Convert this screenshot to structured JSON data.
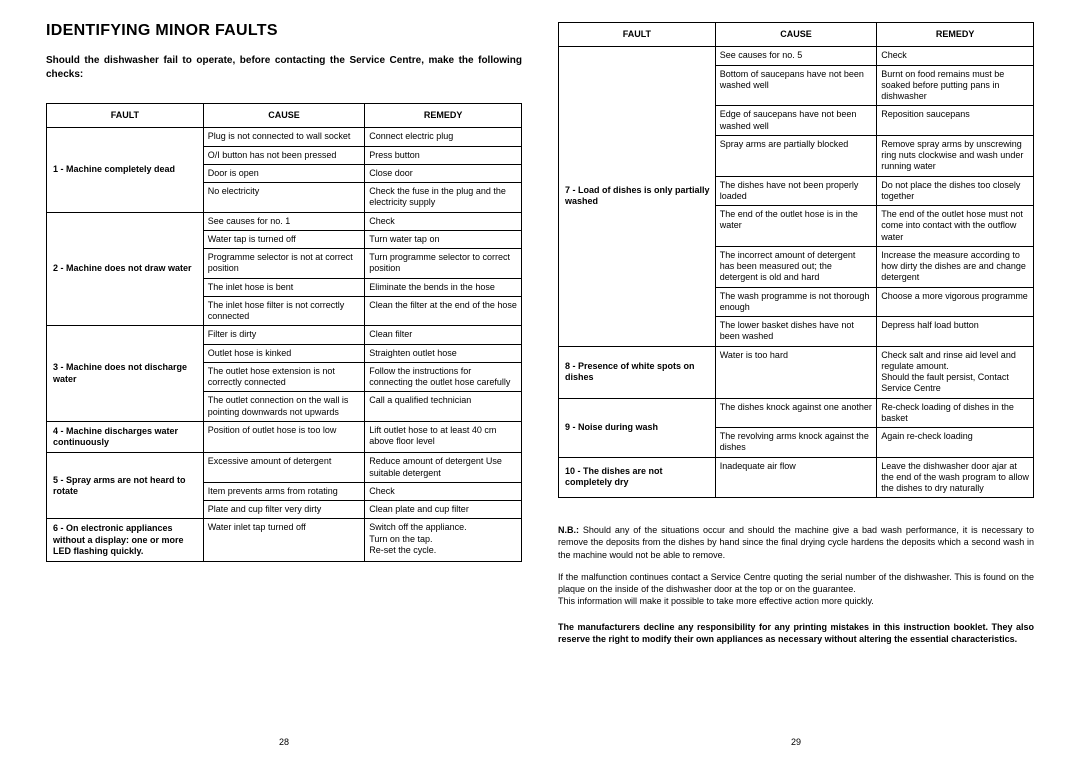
{
  "title": "IDENTIFYING MINOR FAULTS",
  "intro": "Should the dishwasher fail to operate, before contacting the Service Centre, make the following checks:",
  "headers": {
    "fault": "FAULT",
    "cause": "CAUSE",
    "remedy": "REMEDY"
  },
  "leftFaults": [
    {
      "label": "1 - Machine completely dead",
      "rows": [
        {
          "cause": "Plug is not connected to wall socket",
          "remedy": "Connect electric plug"
        },
        {
          "cause": "O/I button has not been pressed",
          "remedy": "Press button"
        },
        {
          "cause": "Door is open",
          "remedy": "Close door"
        },
        {
          "cause": "No electricity",
          "remedy": "Check the fuse in the plug and the electricity supply"
        }
      ]
    },
    {
      "label": "2 - Machine does not draw water",
      "rows": [
        {
          "cause": "See causes for no. 1",
          "remedy": "Check"
        },
        {
          "cause": "Water tap is turned off",
          "remedy": "Turn water tap on"
        },
        {
          "cause": "Programme selector is not at correct position",
          "remedy": "Turn programme selector to correct position"
        },
        {
          "cause": "The inlet hose is bent",
          "remedy": "Eliminate the bends in the hose"
        },
        {
          "cause": "The inlet hose filter is not correctly connected",
          "remedy": "Clean the filter at the end of the hose"
        }
      ]
    },
    {
      "label": "3 - Machine does not discharge water",
      "rows": [
        {
          "cause": "Filter is dirty",
          "remedy": "Clean filter"
        },
        {
          "cause": "Outlet hose is kinked",
          "remedy": "Straighten outlet hose"
        },
        {
          "cause": "The outlet hose extension is not correctly connected",
          "remedy": "Follow the instructions for connecting the outlet hose carefully"
        },
        {
          "cause": "The outlet connection on the wall is pointing downwards not upwards",
          "remedy": "Call a qualified technician"
        }
      ]
    },
    {
      "label": "4 - Machine discharges water continuously",
      "rows": [
        {
          "cause": "Position of outlet hose is too low",
          "remedy": "Lift outlet hose to at least 40 cm above floor level"
        }
      ]
    },
    {
      "label": "5 - Spray arms are not heard to rotate",
      "rows": [
        {
          "cause": "Excessive amount of detergent",
          "remedy": "Reduce amount of detergent Use suitable detergent"
        },
        {
          "cause": "Item prevents arms from rotating",
          "remedy": "Check"
        },
        {
          "cause": "Plate and cup filter very dirty",
          "remedy": "Clean plate and cup filter"
        }
      ]
    },
    {
      "label": "6 - On electronic appliances without a display: one or more LED flashing quickly.",
      "rows": [
        {
          "cause": "Water inlet tap turned off",
          "remedy": "Switch off the appliance.\nTurn on the tap.\nRe-set the cycle."
        }
      ]
    }
  ],
  "rightFaults": [
    {
      "label": "7 -  Load of dishes is only partially washed",
      "rows": [
        {
          "cause": "See causes for no. 5",
          "remedy": "Check"
        },
        {
          "cause": "Bottom of saucepans have not been washed well",
          "remedy": "Burnt on food remains must be soaked before putting pans in dishwasher"
        },
        {
          "cause": "Edge of saucepans have not been washed well",
          "remedy": "Reposition saucepans"
        },
        {
          "cause": "Spray arms are partially blocked",
          "remedy": "Remove spray arms by unscrewing ring nuts clockwise and wash under running water"
        },
        {
          "cause": "The dishes have not been properly loaded",
          "remedy": "Do not place the dishes too closely together"
        },
        {
          "cause": "The end of the outlet hose is in the water",
          "remedy": "The end of the outlet hose must not come into contact with the outflow water"
        },
        {
          "cause": "The incorrect amount of detergent has been measured out; the detergent is old and hard",
          "remedy": "Increase the measure according to how dirty the dishes are and change detergent"
        },
        {
          "cause": "The wash programme is not thorough enough",
          "remedy": "Choose a more vigorous programme"
        },
        {
          "cause": "The lower basket dishes have not been washed",
          "remedy": "Depress half load button"
        }
      ]
    },
    {
      "label": "8 -  Presence of white spots on dishes",
      "rows": [
        {
          "cause": "Water is too hard",
          "remedy": "Check salt and rinse aid level and regulate amount.\nShould the fault persist, Contact Service Centre"
        }
      ]
    },
    {
      "label": "9 -  Noise during wash",
      "rows": [
        {
          "cause": "The dishes knock against one another",
          "remedy": "Re-check loading of dishes in the basket"
        },
        {
          "cause": "The revolving arms knock against the dishes",
          "remedy": "Again re-check loading"
        }
      ]
    },
    {
      "label": "10 - The dishes are not completely dry",
      "rows": [
        {
          "cause": "Inadequate air flow",
          "remedy": "Leave the dishwasher door ajar at the end of the wash program to allow the dishes to dry naturally"
        }
      ]
    }
  ],
  "nb": "N.B.: Should any of the situations occur and should the machine give a bad wash performance, it is necessary to remove the deposits from the dishes by hand since the final drying cycle hardens the deposits which a second wash in the machine would not be able to remove.",
  "nb2": "If the malfunction continues contact a Service Centre quoting the serial number of the dishwasher. This is found on the plaque on the inside of the dishwasher door at the top or on the guarantee.\nThis information will make it possible to take more effective action more quickly.",
  "disclaimer": "The manufacturers decline any responsibility for any printing mistakes in this instruction booklet. They also reserve the right to modify their own appliances as necessary without altering the essential characteristics.",
  "pageLeft": "28",
  "pageRight": "29"
}
